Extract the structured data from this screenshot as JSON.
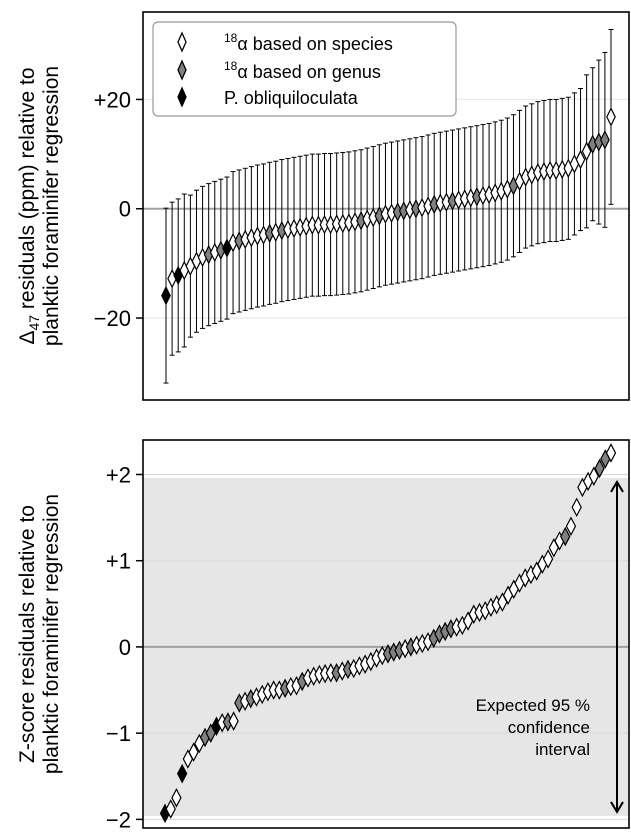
{
  "chart_data": [
    {
      "type": "scatter",
      "xlabel": "",
      "ylabel_main": "Δ",
      "ylabel_sub": "47",
      "ylabel_rest": " residuals (ppm) relative to",
      "ylabel_line2": "planktic foraminifer regression",
      "ylim": [
        -35,
        36
      ],
      "yticks": [
        {
          "value": 20,
          "label": "+20"
        },
        {
          "value": 0,
          "label": "0"
        },
        {
          "value": -20,
          "label": "−20"
        }
      ],
      "legend": {
        "position": "top-left",
        "sup": "18",
        "items": [
          {
            "pre": "",
            "text": "α based on species",
            "marker_color": "#ffffff",
            "has_sup": true
          },
          {
            "pre": "",
            "text": "α based on genus",
            "marker_color": "#808080",
            "has_sup": true
          },
          {
            "pre": "",
            "text": "P. obliquiloculata",
            "marker_color": "#000000",
            "has_sup": false
          }
        ]
      },
      "colors": {
        "species": "#ffffff",
        "genus": "#808080",
        "obliquiloculata": "#000000"
      },
      "zero_line": true,
      "grid": true,
      "values": [
        -15.9,
        -12.8,
        -12.2,
        -11.3,
        -10.5,
        -9.6,
        -8.9,
        -8.4,
        -8.0,
        -7.6,
        -7.2,
        -6.2,
        -5.9,
        -5.6,
        -5.3,
        -5.0,
        -4.8,
        -4.5,
        -4.3,
        -4.0,
        -3.8,
        -3.6,
        -3.4,
        -3.2,
        -3.0,
        -3.0,
        -2.9,
        -2.9,
        -2.8,
        -2.7,
        -2.6,
        -2.4,
        -2.2,
        -1.9,
        -1.6,
        -1.3,
        -1.0,
        -0.8,
        -0.6,
        -0.4,
        -0.2,
        0.0,
        0.2,
        0.5,
        0.8,
        1.0,
        1.2,
        1.4,
        1.6,
        1.8,
        2.0,
        2.2,
        2.4,
        2.6,
        2.9,
        3.2,
        3.6,
        4.2,
        5.0,
        5.8,
        6.2,
        6.6,
        6.8,
        7.0,
        7.0,
        7.2,
        7.4,
        8.2,
        9.0,
        10.5,
        11.8,
        12.2,
        12.6,
        16.8
      ],
      "errors": [
        16,
        14,
        14,
        14,
        13,
        13,
        13,
        13,
        13,
        13,
        13,
        13,
        13,
        13,
        13,
        13,
        13,
        13,
        13,
        13,
        13,
        13,
        13,
        13,
        13,
        13,
        13,
        13,
        13,
        13,
        13,
        13,
        13,
        13,
        13,
        13,
        13,
        13,
        13,
        13,
        13,
        13,
        13,
        13,
        13,
        13,
        13,
        13,
        13,
        13,
        13,
        13,
        13,
        13,
        13,
        13,
        13,
        13,
        13,
        13,
        13,
        13,
        13,
        13,
        13,
        13,
        13,
        13,
        13,
        14,
        14,
        15,
        16,
        16
      ],
      "groups": [
        "P",
        "S",
        "P",
        "S",
        "S",
        "S",
        "S",
        "G",
        "S",
        "G",
        "P",
        "S",
        "G",
        "S",
        "S",
        "S",
        "S",
        "G",
        "S",
        "G",
        "S",
        "S",
        "S",
        "S",
        "S",
        "S",
        "S",
        "S",
        "S",
        "S",
        "S",
        "S",
        "G",
        "S",
        "S",
        "G",
        "S",
        "S",
        "G",
        "G",
        "S",
        "G",
        "S",
        "S",
        "G",
        "S",
        "S",
        "G",
        "S",
        "S",
        "S",
        "G",
        "S",
        "S",
        "S",
        "S",
        "S",
        "G",
        "S",
        "S",
        "S",
        "S",
        "S",
        "S",
        "S",
        "S",
        "S",
        "S",
        "S",
        "S",
        "G",
        "G",
        "G",
        "S"
      ]
    },
    {
      "type": "scatter",
      "xlabel": "",
      "ylabel_line1": "Z-score residuals relative to",
      "ylabel_line2": "planktic foraminifer regression",
      "ylim": [
        -2.1,
        2.4
      ],
      "yticks": [
        {
          "value": 2,
          "label": "+2"
        },
        {
          "value": 1,
          "label": "+1"
        },
        {
          "value": 0,
          "label": "0"
        },
        {
          "value": -1,
          "label": "−1"
        },
        {
          "value": -2,
          "label": "−2"
        }
      ],
      "shaded_band": [
        -1.96,
        1.96
      ],
      "colors": {
        "band": "#e6e6e6",
        "species": "#ffffff",
        "genus": "#808080",
        "obliquiloculata": "#000000"
      },
      "annotation": [
        "Expected 95 %",
        "confidence",
        "interval"
      ],
      "grid": true,
      "zero_line": true,
      "values": [
        -1.93,
        -1.88,
        -1.75,
        -1.47,
        -1.3,
        -1.22,
        -1.12,
        -1.05,
        -1.0,
        -0.92,
        -0.88,
        -0.87,
        -0.86,
        -0.65,
        -0.63,
        -0.6,
        -0.58,
        -0.55,
        -0.52,
        -0.5,
        -0.5,
        -0.48,
        -0.46,
        -0.45,
        -0.4,
        -0.36,
        -0.34,
        -0.32,
        -0.31,
        -0.3,
        -0.3,
        -0.28,
        -0.26,
        -0.25,
        -0.22,
        -0.2,
        -0.17,
        -0.13,
        -0.1,
        -0.08,
        -0.06,
        -0.04,
        -0.02,
        0.0,
        0.02,
        0.04,
        0.06,
        0.1,
        0.15,
        0.18,
        0.21,
        0.23,
        0.25,
        0.3,
        0.38,
        0.4,
        0.42,
        0.46,
        0.49,
        0.52,
        0.6,
        0.67,
        0.74,
        0.8,
        0.84,
        0.88,
        0.96,
        1.02,
        1.15,
        1.23,
        1.28,
        1.4,
        1.62,
        1.85,
        1.92,
        1.98,
        2.07,
        2.18,
        2.25
      ],
      "groups": [
        "P",
        "S",
        "S",
        "P",
        "S",
        "S",
        "S",
        "G",
        "G",
        "P",
        "S",
        "G",
        "S",
        "G",
        "S",
        "G",
        "S",
        "S",
        "S",
        "S",
        "S",
        "G",
        "S",
        "S",
        "G",
        "S",
        "S",
        "S",
        "S",
        "S",
        "G",
        "S",
        "G",
        "S",
        "S",
        "S",
        "S",
        "S",
        "S",
        "G",
        "G",
        "G",
        "S",
        "G",
        "S",
        "S",
        "S",
        "G",
        "G",
        "G",
        "G",
        "S",
        "S",
        "S",
        "S",
        "S",
        "S",
        "S",
        "S",
        "S",
        "S",
        "S",
        "S",
        "S",
        "S",
        "S",
        "S",
        "S",
        "S",
        "S",
        "G",
        "S",
        "S",
        "S",
        "S",
        "S",
        "G",
        "G",
        "S",
        "S"
      ]
    }
  ]
}
